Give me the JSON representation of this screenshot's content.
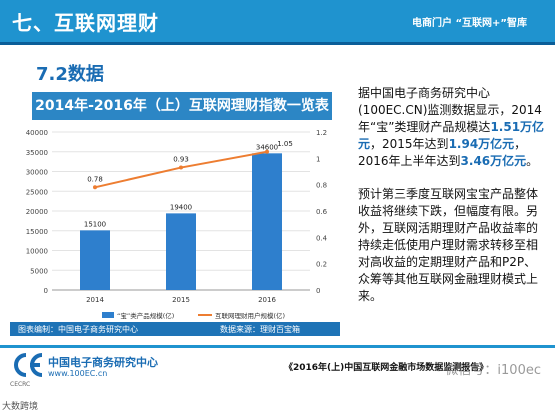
{
  "header": {
    "title": "七、互联网理财",
    "brand": "电商门户 “互联网+”智库"
  },
  "section": {
    "title": "7.2数据"
  },
  "colors": {
    "bar": "#2e7fcd",
    "line": "#ed7d31",
    "header_bg": "#1f93cf",
    "title_bg": "#2c86c5"
  },
  "chart_data": {
    "type": "bar",
    "title": "2014年-2016年（上）互联网理财指数一览表",
    "categories": [
      "2014",
      "2015",
      "2016"
    ],
    "series": [
      {
        "name": "“宝”类产品规模(亿)",
        "type": "bar",
        "axis": "left",
        "values": [
          15100,
          19400,
          34600
        ]
      },
      {
        "name": "互联网理财用户规模(亿)",
        "type": "line",
        "axis": "right",
        "values": [
          0.78,
          0.93,
          1.05
        ]
      }
    ],
    "ylim_left": [
      0,
      40000
    ],
    "yticks_left": [
      "0",
      "5000",
      "10000",
      "15000",
      "20000",
      "25000",
      "30000",
      "35000",
      "40000"
    ],
    "ylim_right": [
      0,
      1.2
    ],
    "yticks_right": [
      "0",
      "0.2",
      "0.4",
      "0.6",
      "0.8",
      "1",
      "1.2"
    ],
    "bar_labels": [
      "15100",
      "19400",
      "34600"
    ],
    "line_labels": [
      "0.78",
      "0.93",
      "1.05"
    ],
    "legend": "bottom"
  },
  "chart_footer": {
    "left": "图表编制：中国电子商务研究中心",
    "right": "数据来源：理财百宝箱"
  },
  "text": {
    "p1_a": "据中国电子商务研究中心(100EC.CN)监测数据显示，2014年“宝”类理财产品规模达",
    "p1_v1": "1.51万亿元",
    "p1_b": "，2015年达到",
    "p1_v2": "1.94万亿元",
    "p1_c": "，2016年上半年达到",
    "p1_v3": "3.46万亿元",
    "p1_d": "。",
    "p2": "预计第三季度互联网宝宝产品整体收益将继续下跌，但幅度有限。另外，互联网活期理财产品收益率的持续走低使用户理财需求转移至相对高收益的定期理财产品和P2P、众筹等其他互联网金融理财模式上来。"
  },
  "footer": {
    "logo_cn": "中国电子商务研究中心",
    "logo_url": "www.100EC.cn",
    "logo_en": "CECRC",
    "report_title": "《2016年(上)中国互联网金融市场数据监测报告》",
    "watermark": "微信号：i100ec",
    "corner": "大数跨境"
  }
}
